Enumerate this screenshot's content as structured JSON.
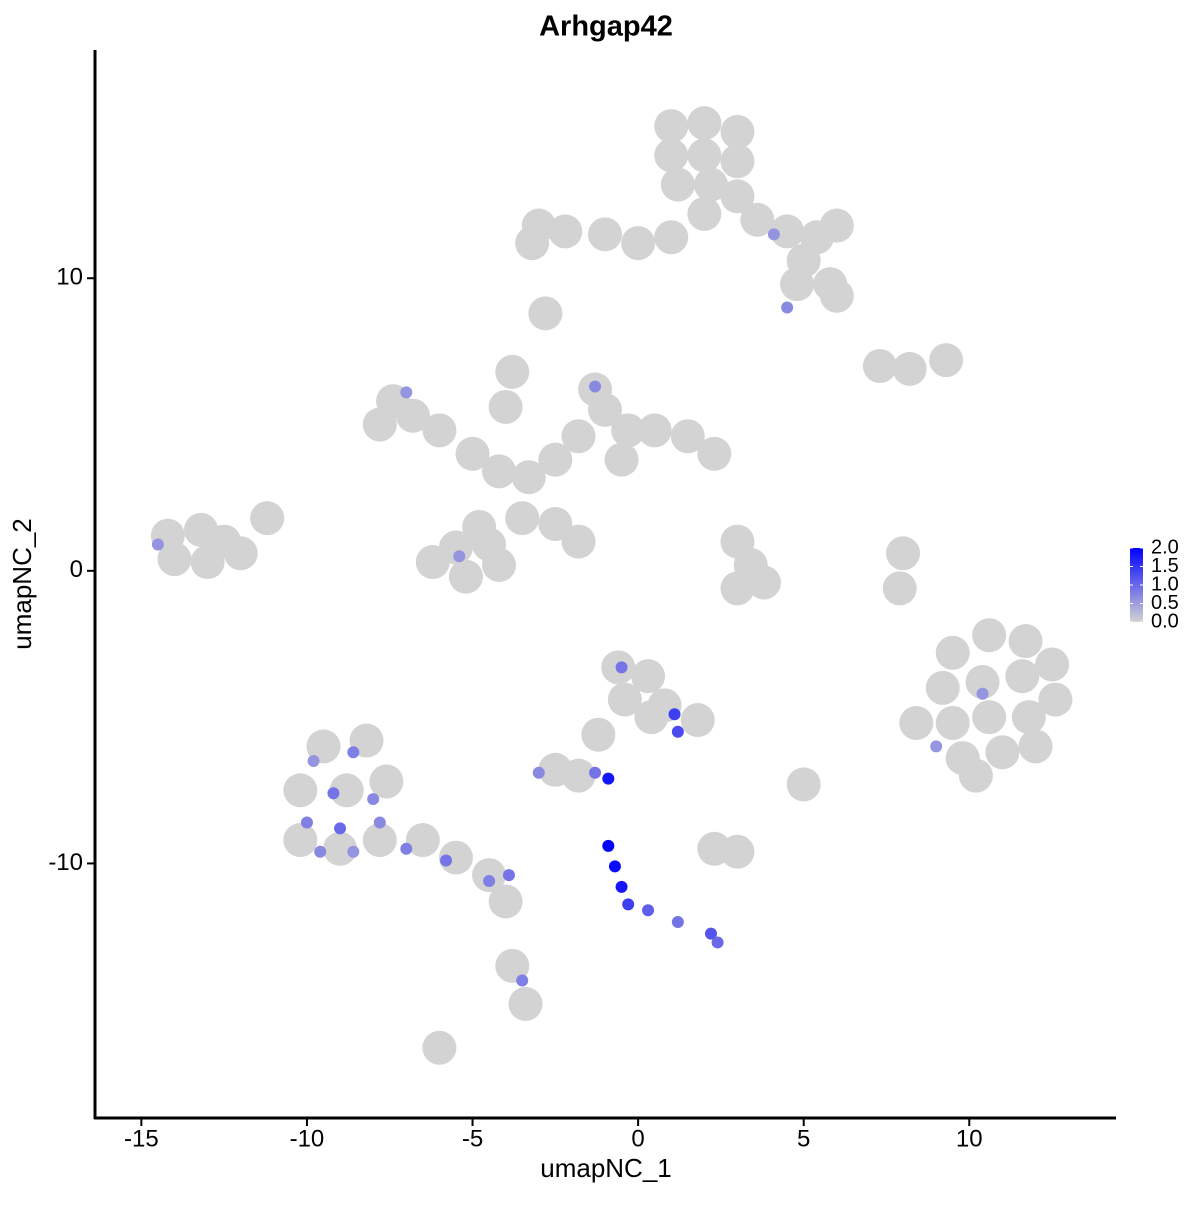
{
  "chart_data": {
    "type": "scatter",
    "title": "Arhgap42",
    "x_label": "umapNC_1",
    "y_label": "umapNC_2",
    "xlim": [
      -16.4,
      14.4
    ],
    "ylim": [
      -18.7,
      17.8
    ],
    "xticks": [
      -15,
      -10,
      -5,
      0,
      5,
      10
    ],
    "yticks": [
      -10,
      0,
      10
    ],
    "grid": false,
    "low_color": "#d3d3d3",
    "high_color": "#0000ff",
    "color_lim": [
      0,
      2
    ],
    "color_ticks": [
      {
        "value": 0,
        "label": "0.0"
      },
      0.5,
      {
        "value": 1,
        "label": "1.0"
      },
      1.5,
      {
        "value": 2,
        "label": "2.0"
      }
    ],
    "legend_position": "right",
    "x": [
      1.0,
      2.0,
      3.0,
      1.0,
      2.0,
      3.0,
      1.2,
      2.2,
      3.0,
      2.0,
      3.6,
      4.5,
      5.4,
      6.0,
      5.0,
      5.8,
      6.0,
      4.8,
      1.0,
      0,
      -1,
      -2.2,
      -3,
      -3.2,
      8.2,
      9.3,
      7.3,
      -2.8,
      -7.4,
      -6.8,
      -7.8,
      -6.0,
      -5.0,
      -4.2,
      -3.3,
      -2.5,
      -1.8,
      -1.0,
      -1.3,
      -0.3,
      0.5,
      1.5,
      2.3,
      -0.5,
      -3.8,
      -4.0,
      -3.5,
      -4.8,
      -5.5,
      -6.2,
      -5.2,
      -4.2,
      -4.5,
      -2.5,
      -1.8,
      -14.2,
      -13.2,
      -12.5,
      -14,
      -13,
      -12,
      -11.2,
      3.4,
      3.0,
      3.8,
      3.0,
      8.0,
      7.9,
      9.5,
      10.6,
      11.7,
      12.5,
      9.2,
      10.4,
      11.6,
      12.6,
      9.5,
      10.6,
      11.8,
      9.8,
      11.0,
      12.0,
      10.2,
      8.4,
      -0.6,
      0.3,
      0.8,
      -0.4,
      0.4,
      -1.2,
      -2.5,
      -1.8,
      2.3,
      3.0,
      5.0,
      1.8,
      -9.5,
      -8.2,
      -10.2,
      -8.8,
      -7.6,
      -10.2,
      -9.0,
      -7.8,
      -6.5,
      -5.5,
      -4.5,
      -4.0,
      -3.8,
      -3.4,
      -6.0,
      -9.8,
      -8.6,
      -9.2,
      -8.0,
      -10.0,
      -9.0,
      -7.8,
      -8.6,
      -7.0,
      -5.8,
      -4.5,
      -3.9,
      -3.5,
      -9.6,
      -0.9,
      -0.7,
      -0.5,
      -0.3,
      0.3,
      1.2,
      2.2,
      2.4,
      -0.9,
      1.1,
      1.2,
      -1.3,
      -3.0,
      -0.5,
      9.0,
      10.4,
      4.1,
      -7.0,
      -1.3,
      -14.5,
      -5.4,
      4.5
    ],
    "y": [
      15.2,
      15.3,
      15.0,
      14.2,
      14.2,
      14.0,
      13.2,
      13.2,
      12.8,
      12.2,
      12.0,
      11.6,
      11.4,
      11.8,
      10.6,
      9.8,
      9.4,
      9.8,
      11.4,
      11.2,
      11.5,
      11.6,
      11.8,
      11.2,
      6.9,
      7.2,
      7.0,
      8.8,
      5.8,
      5.3,
      5.0,
      4.8,
      4.0,
      3.4,
      3.2,
      3.8,
      4.6,
      5.5,
      6.2,
      4.8,
      4.8,
      4.6,
      4.0,
      3.8,
      6.8,
      5.6,
      1.8,
      1.5,
      0.8,
      0.3,
      -0.2,
      0.2,
      0.9,
      1.6,
      1.0,
      1.2,
      1.4,
      1.0,
      0.4,
      0.3,
      0.6,
      1.8,
      0.2,
      -0.6,
      -0.4,
      1.0,
      0.6,
      -0.6,
      -2.8,
      -2.2,
      -2.4,
      -3.2,
      -4.0,
      -3.8,
      -3.6,
      -4.4,
      -5.2,
      -5.0,
      -5.0,
      -6.4,
      -6.2,
      -6.0,
      -7.0,
      -5.2,
      -3.3,
      -3.6,
      -4.6,
      -4.4,
      -5.0,
      -5.6,
      -6.8,
      -7.0,
      -9.5,
      -9.6,
      -7.3,
      -5.1,
      -6,
      -5.8,
      -7.5,
      -7.5,
      -7.2,
      -9.2,
      -9.5,
      -9.2,
      -9.2,
      -9.8,
      -10.4,
      -11.3,
      -13.5,
      -14.8,
      -16.3,
      -6.5,
      -6.2,
      -7.6,
      -7.8,
      -8.6,
      -8.8,
      -8.6,
      -9.6,
      -9.5,
      -9.9,
      -10.6,
      -10.4,
      -14.0,
      -9.6,
      -9.4,
      -10.1,
      -10.8,
      -11.4,
      -11.6,
      -12.0,
      -12.4,
      -12.7,
      -7.1,
      -4.9,
      -5.5,
      -6.9,
      -6.9,
      -3.3,
      -6.0,
      -4.2,
      11.5,
      6.1,
      6.3,
      0.9,
      0.5,
      9.0
    ],
    "values": [
      0,
      0,
      0,
      0,
      0,
      0,
      0,
      0,
      0,
      0,
      0,
      0,
      0,
      0,
      0,
      0,
      0,
      0,
      0,
      0,
      0,
      0,
      0,
      0,
      0,
      0,
      0,
      0,
      0,
      0,
      0,
      0,
      0,
      0,
      0,
      0,
      0,
      0,
      0,
      0,
      0,
      0,
      0,
      0,
      0,
      0,
      0,
      0,
      0,
      0,
      0,
      0,
      0,
      0,
      0,
      0,
      0,
      0,
      0,
      0,
      0,
      0,
      0,
      0,
      0,
      0,
      0,
      0,
      0,
      0,
      0,
      0,
      0,
      0,
      0,
      0,
      0,
      0,
      0,
      0,
      0,
      0,
      0,
      0,
      0,
      0,
      0,
      0,
      0,
      0,
      0,
      0,
      0,
      0,
      0,
      0,
      0,
      0,
      0,
      0,
      0,
      0,
      0,
      0,
      0,
      0,
      0,
      0,
      0,
      0,
      0,
      0.6,
      0.8,
      0.9,
      0.7,
      0.8,
      1.0,
      0.7,
      0.6,
      0.8,
      0.9,
      0.8,
      0.9,
      0.8,
      0.7,
      2.0,
      1.9,
      1.8,
      1.4,
      1.1,
      0.9,
      1.2,
      1.0,
      1.8,
      1.4,
      1.3,
      0.9,
      0.7,
      0.9,
      0.6,
      0.6,
      0.6,
      0.6,
      0.7,
      0.6,
      0.6,
      0.7
    ]
  }
}
